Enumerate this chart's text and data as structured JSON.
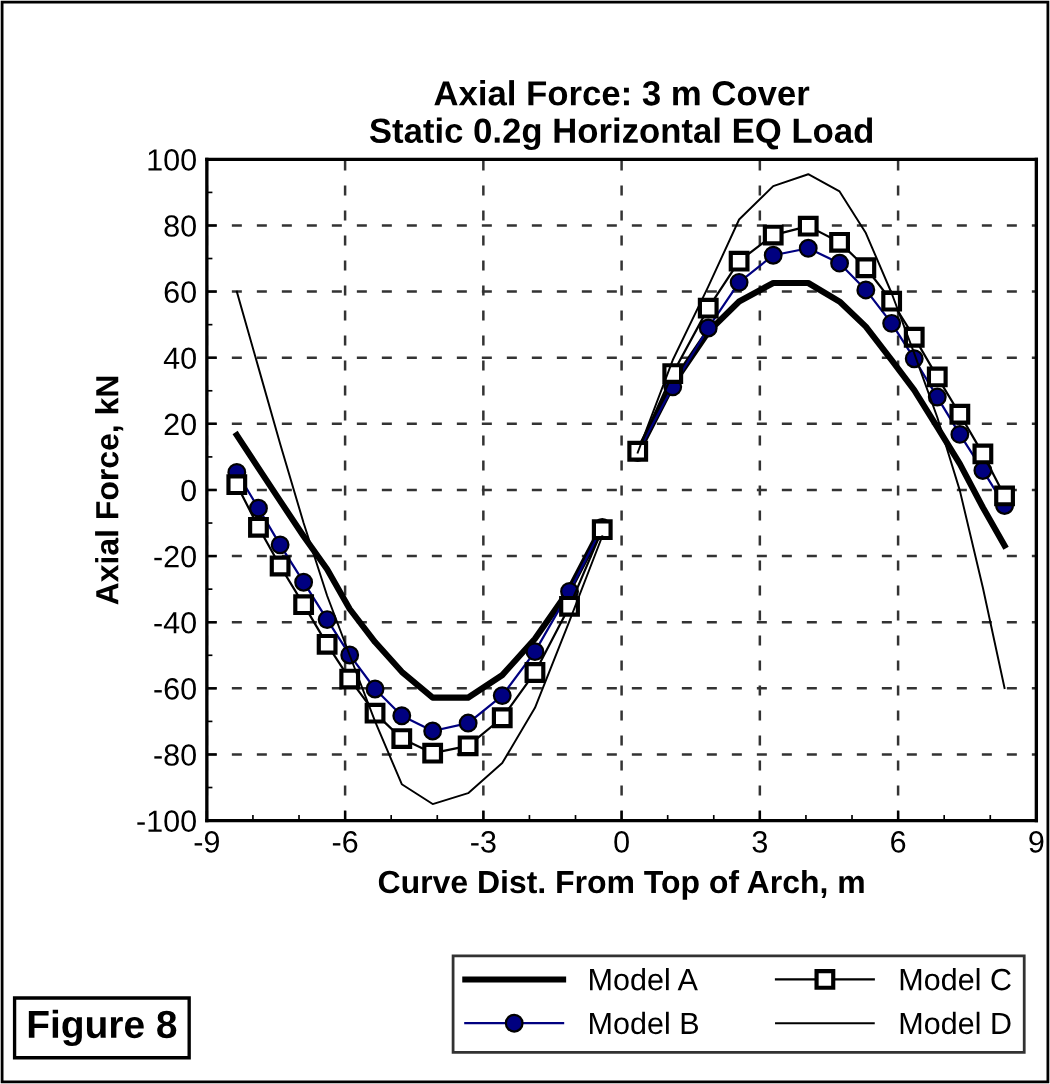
{
  "chart_data": {
    "type": "line",
    "title": "Axial Force: 3 m Cover\nStatic 0.2g Horizontal EQ Load",
    "xlabel": "Curve Dist. From Top of Arch, m",
    "ylabel": "Axial Force, kN",
    "x": [
      -8.35,
      -7.88,
      -7.41,
      -6.9,
      -6.39,
      -5.9,
      -5.35,
      -4.77,
      -4.1,
      -3.33,
      -2.59,
      -1.88,
      -1.13,
      -0.42,
      0,
      0.35,
      1.11,
      1.88,
      2.55,
      3.29,
      4.05,
      4.73,
      5.3,
      5.86,
      6.35,
      6.85,
      7.34,
      7.84,
      8.31
    ],
    "series": [
      {
        "name": "Model A",
        "color": "#000000",
        "marker": "none",
        "values": [
          16.6,
          6.6,
          -3.3,
          -14,
          -24,
          -36,
          -46,
          -55,
          -62.8,
          -62.8,
          -56,
          -45,
          -30,
          -11,
          null,
          11.3,
          32,
          47.8,
          57,
          62.6,
          62.6,
          57,
          49.4,
          39.3,
          30.2,
          19,
          7.9,
          -5.3,
          -16.8
        ]
      },
      {
        "name": "Model B",
        "color": "#000080",
        "marker": "circle",
        "values": [
          5.3,
          -5.5,
          -16.6,
          -27.9,
          -39.2,
          -49.9,
          -60.2,
          -68.3,
          -72.9,
          -70.5,
          -62.2,
          -48.9,
          -30.7,
          -11.3,
          null,
          11.3,
          31.2,
          49,
          62.8,
          71,
          73.1,
          68.6,
          60.5,
          50.4,
          39.7,
          28.1,
          16.8,
          5.9,
          -4.7
        ]
      },
      {
        "name": "Model C",
        "color": "#000000",
        "marker": "square",
        "values": [
          1.6,
          -11.3,
          -23,
          -34.7,
          -46.7,
          -57.2,
          -67.5,
          -75.2,
          -79.6,
          -77.4,
          -68.9,
          -55.2,
          -35.2,
          -12,
          null,
          11.7,
          35.2,
          55,
          69.2,
          77.1,
          79.8,
          74.9,
          67.2,
          57.1,
          46.2,
          34.2,
          22.9,
          10.9,
          -1.8
        ]
      },
      {
        "name": "Model D",
        "color": "#000000",
        "marker": "none",
        "values": [
          60,
          37,
          14,
          -10,
          -32,
          -50,
          -70,
          -89,
          -95,
          -91.7,
          -82.6,
          -65.9,
          -39.6,
          -14,
          null,
          11.3,
          39.3,
          61.5,
          81.8,
          91.9,
          95.5,
          90.3,
          77.7,
          59.5,
          41.3,
          22,
          -0.2,
          -29.6,
          -59.9
        ]
      }
    ],
    "xlim": [
      -9,
      9
    ],
    "xticks": [
      -9,
      -6,
      -3,
      0,
      3,
      6,
      9
    ],
    "ylim": [
      -100,
      100
    ],
    "yticks": [
      -100,
      -80,
      -60,
      -40,
      -20,
      0,
      20,
      40,
      60,
      80,
      100
    ],
    "grid": true,
    "legend": "bottom",
    "line_style": "solid",
    "annotations": [
      "Figure 8"
    ]
  }
}
